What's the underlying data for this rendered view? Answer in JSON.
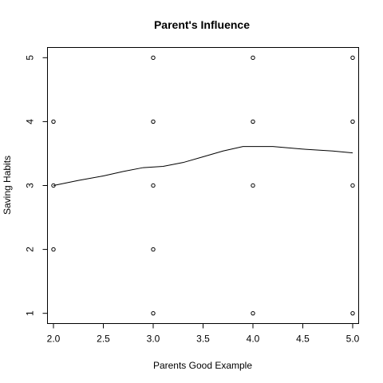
{
  "chart_data": {
    "type": "scatter",
    "title": "Parent's Influence",
    "xlabel": "Parents Good Example",
    "ylabel": "Saving Habits",
    "xlim": [
      1.94,
      5.06
    ],
    "ylim": [
      0.84,
      5.16
    ],
    "x_ticks": [
      "2.0",
      "2.5",
      "3.0",
      "3.5",
      "4.0",
      "4.5",
      "5.0"
    ],
    "y_ticks": [
      "1",
      "2",
      "3",
      "4",
      "5"
    ],
    "grid": false,
    "legend": "none",
    "points": [
      {
        "x": 2,
        "y": 2
      },
      {
        "x": 2,
        "y": 3
      },
      {
        "x": 2,
        "y": 4
      },
      {
        "x": 3,
        "y": 1
      },
      {
        "x": 3,
        "y": 2
      },
      {
        "x": 3,
        "y": 3
      },
      {
        "x": 3,
        "y": 4
      },
      {
        "x": 3,
        "y": 5
      },
      {
        "x": 4,
        "y": 1
      },
      {
        "x": 4,
        "y": 3
      },
      {
        "x": 4,
        "y": 4
      },
      {
        "x": 4,
        "y": 5
      },
      {
        "x": 5,
        "y": 1
      },
      {
        "x": 5,
        "y": 3
      },
      {
        "x": 5,
        "y": 4
      },
      {
        "x": 5,
        "y": 5
      }
    ],
    "smooth_line": [
      {
        "x": 2.0,
        "y": 3.0
      },
      {
        "x": 2.25,
        "y": 3.08
      },
      {
        "x": 2.5,
        "y": 3.15
      },
      {
        "x": 2.7,
        "y": 3.22
      },
      {
        "x": 2.9,
        "y": 3.28
      },
      {
        "x": 3.1,
        "y": 3.3
      },
      {
        "x": 3.3,
        "y": 3.36
      },
      {
        "x": 3.5,
        "y": 3.45
      },
      {
        "x": 3.7,
        "y": 3.54
      },
      {
        "x": 3.9,
        "y": 3.61
      },
      {
        "x": 4.2,
        "y": 3.61
      },
      {
        "x": 4.5,
        "y": 3.57
      },
      {
        "x": 4.8,
        "y": 3.54
      },
      {
        "x": 5.0,
        "y": 3.51
      }
    ]
  }
}
